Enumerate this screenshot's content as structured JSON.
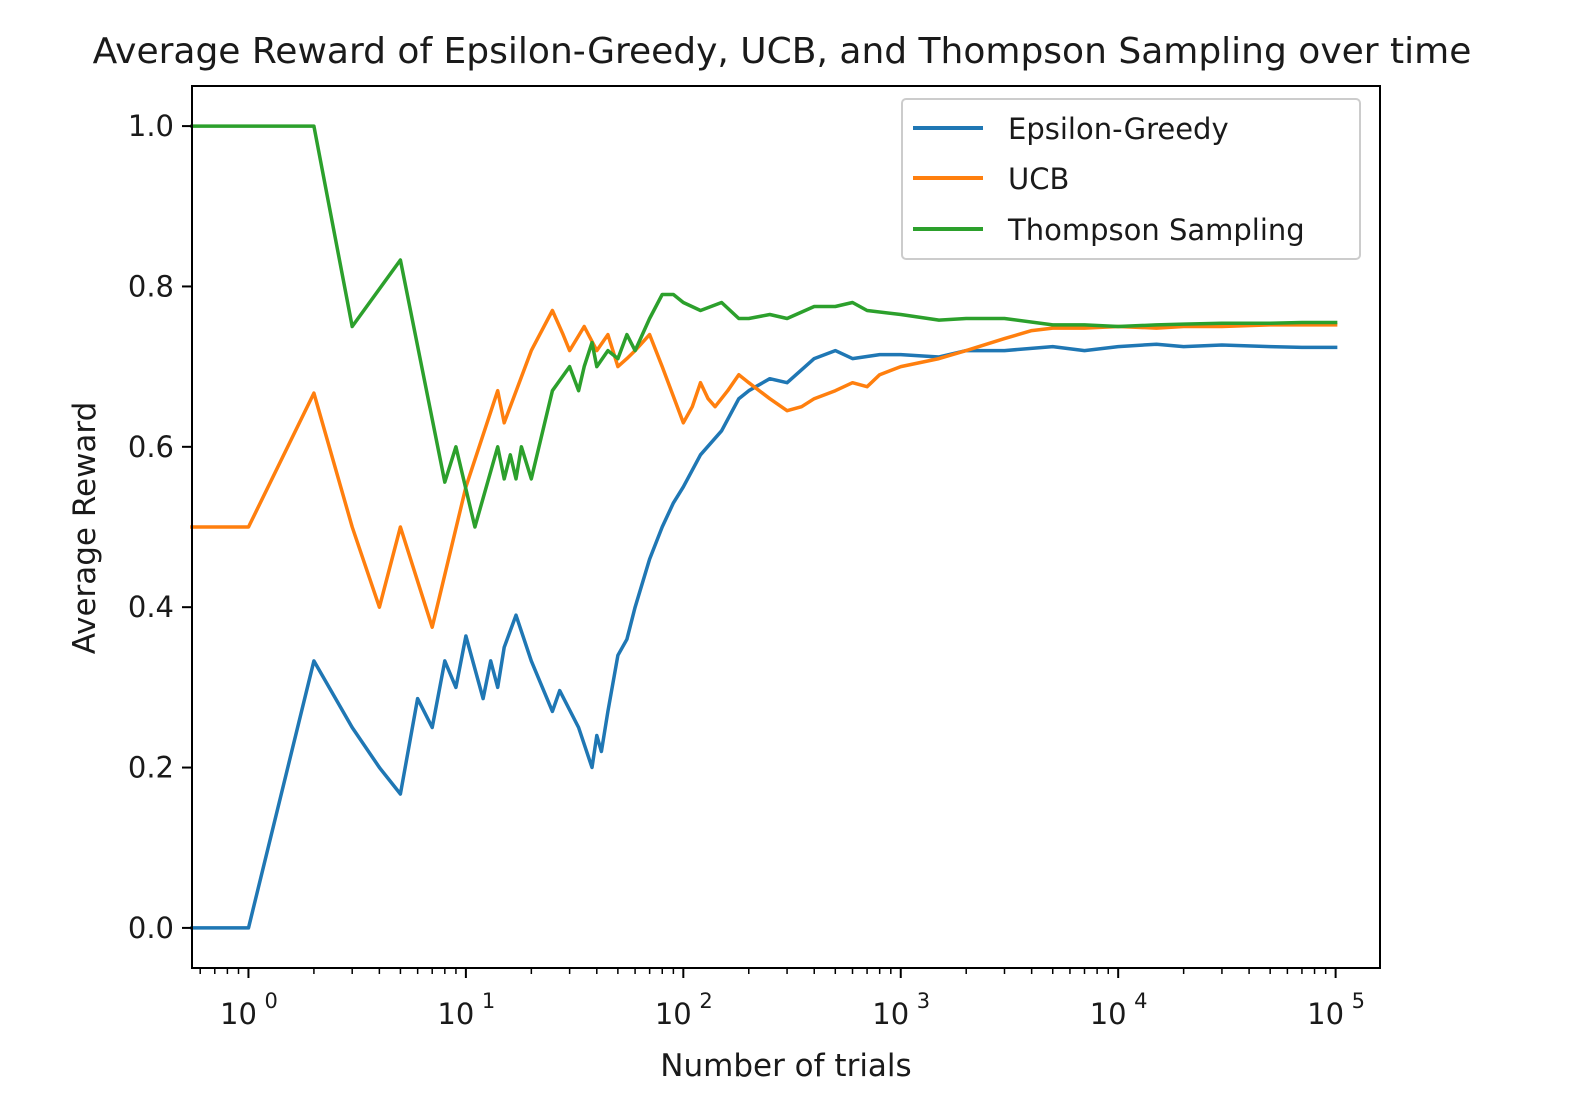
{
  "chart_data": {
    "type": "line",
    "title": "Average Reward of Epsilon-Greedy, UCB, and Thompson Sampling over time",
    "xlabel": "Number of trials",
    "ylabel": "Average Reward",
    "xscale": "log",
    "xlim": [
      0.55,
      160000
    ],
    "ylim": [
      -0.05,
      1.05
    ],
    "xticks": [
      {
        "base": "10",
        "exp": "0",
        "value": 1
      },
      {
        "base": "10",
        "exp": "1",
        "value": 10
      },
      {
        "base": "10",
        "exp": "2",
        "value": 100
      },
      {
        "base": "10",
        "exp": "3",
        "value": 1000
      },
      {
        "base": "10",
        "exp": "4",
        "value": 10000
      },
      {
        "base": "10",
        "exp": "5",
        "value": 100000
      }
    ],
    "yticks": [
      "0.0",
      "0.2",
      "0.4",
      "0.6",
      "0.8",
      "1.0"
    ],
    "grid": false,
    "legend": "top-right",
    "series": [
      {
        "name": "Epsilon-Greedy",
        "color": "#1f77b4",
        "x": [
          0.55,
          1,
          2,
          3,
          4,
          5,
          6,
          7,
          8,
          9,
          10,
          12,
          13,
          14,
          15,
          17,
          20,
          25,
          27,
          33,
          38,
          40,
          42,
          45,
          50,
          55,
          60,
          70,
          80,
          90,
          100,
          120,
          150,
          180,
          200,
          250,
          300,
          400,
          500,
          600,
          800,
          1000,
          1500,
          2000,
          3000,
          5000,
          7000,
          10000,
          15000,
          20000,
          30000,
          50000,
          70000,
          100000
        ],
        "y": [
          0.0,
          0.0,
          0.333,
          0.25,
          0.2,
          0.167,
          0.286,
          0.25,
          0.333,
          0.3,
          0.364,
          0.286,
          0.333,
          0.3,
          0.35,
          0.39,
          0.333,
          0.27,
          0.296,
          0.25,
          0.2,
          0.24,
          0.22,
          0.27,
          0.34,
          0.36,
          0.4,
          0.46,
          0.5,
          0.53,
          0.55,
          0.59,
          0.62,
          0.66,
          0.67,
          0.685,
          0.68,
          0.71,
          0.72,
          0.71,
          0.715,
          0.715,
          0.712,
          0.72,
          0.72,
          0.725,
          0.72,
          0.725,
          0.728,
          0.725,
          0.727,
          0.725,
          0.724,
          0.724
        ]
      },
      {
        "name": "UCB",
        "color": "#ff7f0e",
        "x": [
          0.55,
          1,
          2,
          3,
          4,
          5,
          7,
          10,
          14,
          15,
          20,
          25,
          28,
          30,
          35,
          40,
          45,
          50,
          55,
          60,
          70,
          80,
          100,
          110,
          120,
          130,
          140,
          160,
          180,
          200,
          250,
          300,
          350,
          400,
          500,
          600,
          700,
          800,
          1000,
          1500,
          2000,
          3000,
          4000,
          5000,
          7000,
          10000,
          15000,
          20000,
          30000,
          50000,
          70000,
          100000
        ],
        "y": [
          0.5,
          0.5,
          0.667,
          0.5,
          0.4,
          0.5,
          0.375,
          0.55,
          0.67,
          0.63,
          0.72,
          0.77,
          0.74,
          0.72,
          0.75,
          0.72,
          0.74,
          0.7,
          0.71,
          0.72,
          0.74,
          0.7,
          0.63,
          0.65,
          0.68,
          0.66,
          0.65,
          0.67,
          0.69,
          0.68,
          0.66,
          0.645,
          0.65,
          0.66,
          0.67,
          0.68,
          0.675,
          0.69,
          0.7,
          0.71,
          0.72,
          0.735,
          0.745,
          0.748,
          0.748,
          0.75,
          0.748,
          0.75,
          0.75,
          0.752,
          0.752,
          0.752
        ]
      },
      {
        "name": "Thompson Sampling",
        "color": "#2ca02c",
        "x": [
          0.55,
          1,
          2,
          3,
          5,
          8,
          9,
          11,
          14,
          15,
          16,
          17,
          18,
          20,
          25,
          30,
          33,
          35,
          38,
          40,
          45,
          50,
          55,
          60,
          70,
          80,
          90,
          100,
          120,
          150,
          180,
          200,
          250,
          300,
          400,
          500,
          600,
          700,
          1000,
          1500,
          2000,
          3000,
          5000,
          7000,
          10000,
          15000,
          20000,
          30000,
          50000,
          70000,
          100000
        ],
        "y": [
          1.0,
          1.0,
          1.0,
          0.75,
          0.833,
          0.556,
          0.6,
          0.5,
          0.6,
          0.56,
          0.59,
          0.56,
          0.6,
          0.56,
          0.67,
          0.7,
          0.67,
          0.7,
          0.73,
          0.7,
          0.72,
          0.71,
          0.74,
          0.72,
          0.76,
          0.79,
          0.79,
          0.78,
          0.77,
          0.78,
          0.76,
          0.76,
          0.765,
          0.76,
          0.775,
          0.775,
          0.78,
          0.77,
          0.765,
          0.758,
          0.76,
          0.76,
          0.752,
          0.752,
          0.75,
          0.752,
          0.753,
          0.754,
          0.754,
          0.755,
          0.755
        ]
      }
    ]
  }
}
